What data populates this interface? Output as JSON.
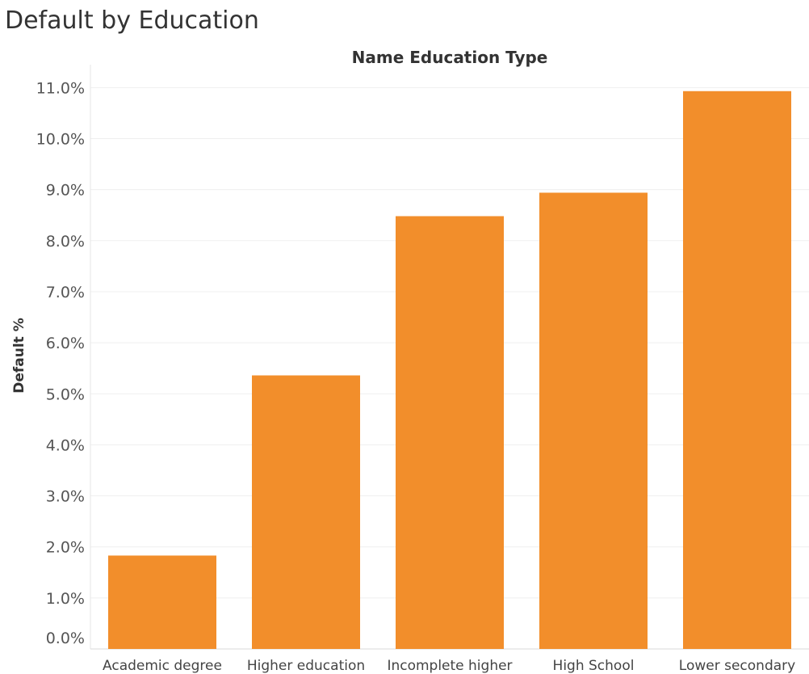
{
  "chart_data": {
    "type": "bar",
    "title": "Default by Education",
    "header": "Name Education Type",
    "ylabel": "Default %",
    "categories": [
      "Academic degree",
      "Higher education",
      "Incomplete higher",
      "High School",
      "Lower secondary"
    ],
    "values": [
      1.83,
      5.36,
      8.48,
      8.94,
      10.93
    ],
    "ylim": [
      0,
      11
    ],
    "yticks": [
      0,
      1,
      2,
      3,
      4,
      5,
      6,
      7,
      8,
      9,
      10,
      11
    ],
    "ytick_labels": [
      "0.0%",
      "1.0%",
      "2.0%",
      "3.0%",
      "4.0%",
      "5.0%",
      "6.0%",
      "7.0%",
      "8.0%",
      "9.0%",
      "10.0%",
      "11.0%"
    ],
    "grid": true,
    "legend": "none",
    "bar_color": "#F28E2B",
    "grid_color": "#EFEFEF"
  }
}
